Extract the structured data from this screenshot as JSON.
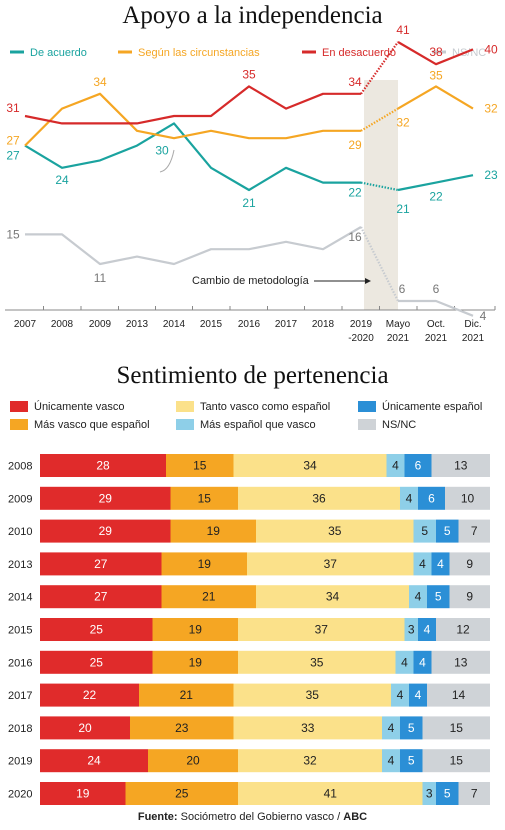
{
  "source": {
    "prefix": "Fuente:",
    "text": " Sociómetro del Gobierno vasco / ",
    "brand": "ABC"
  },
  "chart_data": [
    {
      "type": "line",
      "title": "Apoyo a la independencia",
      "x": [
        "2007",
        "2008",
        "2009",
        "2013",
        "2014",
        "2015",
        "2016",
        "2017",
        "2018",
        "2019\n-2020",
        "Mayo\n2021",
        "Oct.\n2021",
        "Dic.\n2021"
      ],
      "series": [
        {
          "name": "De acuerdo",
          "color": "#1aa39f",
          "values": [
            27,
            24,
            25,
            27,
            30,
            24,
            21,
            24,
            22,
            22,
            21,
            22,
            23
          ]
        },
        {
          "name": "Según las circunstancias",
          "color": "#f5a623",
          "values": [
            27,
            32,
            34,
            29,
            28,
            29,
            28,
            28,
            29,
            29,
            32,
            35,
            32
          ]
        },
        {
          "name": "En desacuerdo",
          "color": "#d62a2a",
          "values": [
            31,
            30,
            30,
            30,
            31,
            31,
            35,
            32,
            34,
            34,
            41,
            38,
            40
          ]
        },
        {
          "name": "NS/NC",
          "color": "#c7cbd0",
          "values": [
            15,
            15,
            11,
            12,
            11,
            13,
            13,
            14,
            13,
            16,
            6,
            6,
            4
          ]
        }
      ],
      "labels": [
        {
          "series": 2,
          "i": 0,
          "text": "31"
        },
        {
          "series": 1,
          "i": 0,
          "text": "27"
        },
        {
          "series": 0,
          "i": 0,
          "text": "27"
        },
        {
          "series": 3,
          "i": 0,
          "text": "15"
        },
        {
          "series": 0,
          "i": 1,
          "text": "24"
        },
        {
          "series": 1,
          "i": 2,
          "text": "34"
        },
        {
          "series": 3,
          "i": 2,
          "text": "11"
        },
        {
          "series": 0,
          "i": 4,
          "text": "30"
        },
        {
          "series": 2,
          "i": 6,
          "text": "35"
        },
        {
          "series": 0,
          "i": 6,
          "text": "21"
        },
        {
          "series": 2,
          "i": 9,
          "text": "34"
        },
        {
          "series": 1,
          "i": 9,
          "text": "29"
        },
        {
          "series": 0,
          "i": 9,
          "text": "22"
        },
        {
          "series": 3,
          "i": 9,
          "text": "16"
        },
        {
          "series": 2,
          "i": 10,
          "text": "41"
        },
        {
          "series": 1,
          "i": 10,
          "text": "32"
        },
        {
          "series": 0,
          "i": 10,
          "text": "21"
        },
        {
          "series": 3,
          "i": 10,
          "text": "6"
        },
        {
          "series": 2,
          "i": 11,
          "text": "38"
        },
        {
          "series": 1,
          "i": 11,
          "text": "35"
        },
        {
          "series": 0,
          "i": 11,
          "text": "22"
        },
        {
          "series": 3,
          "i": 11,
          "text": "6"
        },
        {
          "series": 2,
          "i": 12,
          "text": "40"
        },
        {
          "series": 1,
          "i": 12,
          "text": "32"
        },
        {
          "series": 0,
          "i": 12,
          "text": "23"
        },
        {
          "series": 3,
          "i": 12,
          "text": "4"
        }
      ],
      "annotation": "Cambio de metodología",
      "ylim": [
        0,
        45
      ]
    },
    {
      "type": "bar",
      "stacked": true,
      "orientation": "horizontal",
      "title": "Sentimiento de pertenencia",
      "categories": [
        "2008",
        "2009",
        "2010",
        "2013",
        "2014",
        "2015",
        "2016",
        "2017",
        "2018",
        "2019",
        "2020"
      ],
      "series": [
        {
          "name": "Únicamente vasco",
          "color": "#e02b2b",
          "values": [
            28,
            29,
            29,
            27,
            27,
            25,
            25,
            22,
            20,
            24,
            19
          ]
        },
        {
          "name": "Más vasco que español",
          "color": "#f5a623",
          "values": [
            15,
            15,
            19,
            19,
            21,
            19,
            19,
            21,
            23,
            20,
            25
          ]
        },
        {
          "name": "Tanto vasco como español",
          "color": "#fbe18a",
          "values": [
            34,
            36,
            35,
            37,
            34,
            37,
            35,
            35,
            33,
            32,
            41
          ]
        },
        {
          "name": "Más español que vasco",
          "color": "#8ecfe8",
          "values": [
            4,
            4,
            5,
            4,
            4,
            3,
            4,
            4,
            4,
            4,
            3
          ]
        },
        {
          "name": "Únicamente español",
          "color": "#2b8fd6",
          "values": [
            6,
            6,
            5,
            4,
            5,
            4,
            4,
            4,
            5,
            5,
            5
          ]
        },
        {
          "name": "NS/NC",
          "color": "#cfd3d7",
          "values": [
            13,
            10,
            7,
            9,
            9,
            12,
            13,
            14,
            15,
            15,
            7
          ]
        }
      ]
    }
  ]
}
